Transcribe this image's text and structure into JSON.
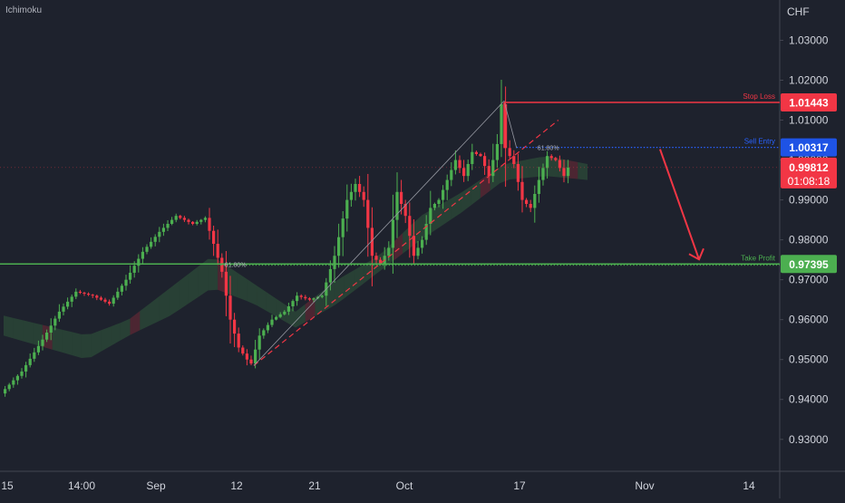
{
  "indicator_label": "Ichimoku",
  "chart_data": {
    "type": "candlestick",
    "y_axis_title": "CHF",
    "ylim": [
      0.922,
      1.0401
    ],
    "y_ticks": [
      "1.03000",
      "1.02000",
      "1.01000",
      "1.00000",
      "0.99000",
      "0.98000",
      "0.97000",
      "0.96000",
      "0.95000",
      "0.94000",
      "0.93000"
    ],
    "x_ticks": [
      "15",
      "14:00",
      "Sep",
      "12",
      "21",
      "Oct",
      "17",
      "Nov",
      "14"
    ],
    "last_price": "0.99812",
    "countdown": "01:08:18",
    "grid": false,
    "levels": {
      "stop_loss": {
        "label": "Stop Loss",
        "value": 1.01443,
        "text": "1.01443",
        "color": "#f23645"
      },
      "sell_entry": {
        "label": "Sell Entry",
        "value": 1.00317,
        "text": "1.00317",
        "color": "#2962ff"
      },
      "take_profit": {
        "label": "Take Profit",
        "value": 0.97395,
        "text": "0.97395",
        "color": "#4caf50"
      }
    },
    "fib_labels": {
      "upper": "61.80%",
      "lower": "61.80%"
    },
    "bar_count": 120,
    "price_path": [
      [
        0,
        0.9415
      ],
      [
        5,
        0.947
      ],
      [
        10,
        0.955
      ],
      [
        14,
        0.962
      ],
      [
        18,
        0.967
      ],
      [
        22,
        0.966
      ],
      [
        26,
        0.964
      ],
      [
        30,
        0.97
      ],
      [
        34,
        0.977
      ],
      [
        38,
        0.982
      ],
      [
        42,
        0.986
      ],
      [
        46,
        0.984
      ],
      [
        49,
        0.9855
      ],
      [
        51,
        0.979
      ],
      [
        53,
        0.972
      ],
      [
        55,
        0.96
      ],
      [
        57,
        0.953
      ],
      [
        59,
        0.95
      ],
      [
        60,
        0.949
      ],
      [
        62,
        0.956
      ],
      [
        65,
        0.96
      ],
      [
        68,
        0.962
      ],
      [
        71,
        0.966
      ],
      [
        74,
        0.965
      ],
      [
        77,
        0.966
      ],
      [
        80,
        0.976
      ],
      [
        83,
        0.99
      ],
      [
        85,
        0.994
      ],
      [
        87,
        0.99
      ],
      [
        89,
        0.976
      ],
      [
        91,
        0.974
      ],
      [
        93,
        0.978
      ],
      [
        95,
        0.992
      ],
      [
        97,
        0.986
      ],
      [
        99,
        0.976
      ],
      [
        101,
        0.98
      ],
      [
        103,
        0.988
      ],
      [
        105,
        0.99
      ],
      [
        107,
        0.995
      ],
      [
        109,
        1.0
      ],
      [
        111,
        0.996
      ],
      [
        113,
        1.002
      ],
      [
        115,
        1.001
      ],
      [
        117,
        0.996
      ],
      [
        119,
        1.004
      ],
      [
        120,
        1.014
      ],
      [
        121,
        1.003
      ],
      [
        123,
        0.999
      ],
      [
        125,
        0.99
      ],
      [
        127,
        0.988
      ],
      [
        129,
        0.995
      ],
      [
        131,
        1.001
      ],
      [
        133,
        1.0
      ],
      [
        135,
        0.996
      ],
      [
        136,
        0.9981
      ]
    ],
    "forecast_points": [
      [
        1.00317,
        0
      ],
      [
        0.97395,
        1
      ]
    ],
    "cloud": {
      "top": [
        [
          0,
          0.961
        ],
        [
          20,
          0.956
        ],
        [
          30,
          0.96
        ],
        [
          40,
          0.968
        ],
        [
          50,
          0.976
        ],
        [
          60,
          0.969
        ],
        [
          70,
          0.962
        ],
        [
          80,
          0.97
        ],
        [
          90,
          0.976
        ],
        [
          100,
          0.986
        ],
        [
          110,
          0.992
        ],
        [
          120,
          0.999
        ],
        [
          130,
          1.001
        ],
        [
          140,
          0.999
        ]
      ],
      "bottom": [
        [
          0,
          0.956
        ],
        [
          20,
          0.95
        ],
        [
          30,
          0.956
        ],
        [
          40,
          0.961
        ],
        [
          50,
          0.968
        ],
        [
          60,
          0.964
        ],
        [
          70,
          0.958
        ],
        [
          80,
          0.964
        ],
        [
          90,
          0.972
        ],
        [
          100,
          0.98
        ],
        [
          110,
          0.987
        ],
        [
          120,
          0.995
        ],
        [
          130,
          0.996
        ],
        [
          140,
          0.995
        ]
      ]
    }
  }
}
